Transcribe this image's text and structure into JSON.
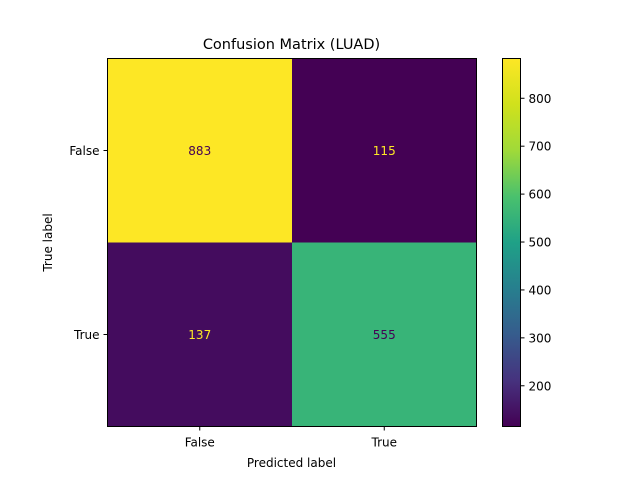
{
  "chart_data": {
    "type": "heatmap",
    "title": "Confusion Matrix (LUAD)",
    "xlabel": "Predicted label",
    "ylabel": "True label",
    "x_categories": [
      "False",
      "True"
    ],
    "y_categories": [
      "False",
      "True"
    ],
    "values": [
      [
        883,
        115
      ],
      [
        137,
        555
      ]
    ],
    "colormap": "viridis",
    "colorbar": {
      "ticks": [
        200,
        300,
        400,
        500,
        600,
        700,
        800
      ],
      "range": [
        115,
        883
      ]
    },
    "text_colors": {
      "on_dark": "#fde725",
      "on_light": "#440154"
    }
  }
}
